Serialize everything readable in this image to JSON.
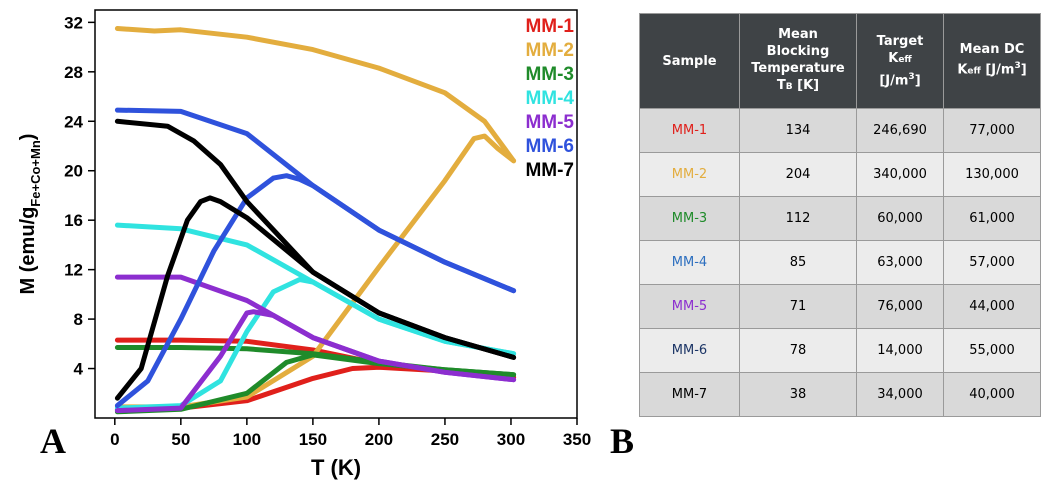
{
  "panel_a_label": "A",
  "panel_b_label": "B",
  "chart_data": {
    "type": "line",
    "xlabel": "T (K)",
    "ylabel": "M (emu/g",
    "ylabel_sub": "Fe+Co+Mn",
    "ylabel_end": ")",
    "xlim": [
      -15,
      350
    ],
    "ylim": [
      0,
      33
    ],
    "xticks": [
      0,
      50,
      100,
      150,
      200,
      250,
      300,
      350
    ],
    "yticks": [
      4,
      8,
      12,
      16,
      20,
      24,
      28,
      32
    ],
    "legend_position": "top-right",
    "series": [
      {
        "name": "MM-1",
        "color": "#e0201b",
        "fc": {
          "x": [
            2,
            50,
            100,
            150,
            200,
            250,
            302
          ],
          "y": [
            6.3,
            6.3,
            6.2,
            5.5,
            4.4,
            3.8,
            3.3
          ]
        },
        "zfc": {
          "x": [
            2,
            50,
            100,
            150,
            180,
            200,
            250,
            302
          ],
          "y": [
            0.7,
            0.8,
            1.4,
            3.2,
            4.0,
            4.1,
            3.8,
            3.3
          ]
        }
      },
      {
        "name": "MM-2",
        "color": "#e3ad3e",
        "fc": {
          "x": [
            2,
            30,
            50,
            100,
            150,
            200,
            250,
            280,
            302
          ],
          "y": [
            31.5,
            31.3,
            31.4,
            30.8,
            29.8,
            28.3,
            26.3,
            24.0,
            20.8
          ]
        },
        "zfc": {
          "x": [
            2,
            50,
            100,
            150,
            200,
            250,
            272,
            280,
            290,
            302
          ],
          "y": [
            0.9,
            0.9,
            1.7,
            5.0,
            12.2,
            19.2,
            22.6,
            22.8,
            21.8,
            20.8
          ]
        }
      },
      {
        "name": "MM-3",
        "color": "#1f8b2a",
        "fc": {
          "x": [
            2,
            50,
            100,
            150,
            200,
            250,
            302
          ],
          "y": [
            5.7,
            5.7,
            5.6,
            5.2,
            4.5,
            3.9,
            3.5
          ]
        },
        "zfc": {
          "x": [
            2,
            50,
            100,
            130,
            150,
            200,
            250,
            302
          ],
          "y": [
            0.5,
            0.7,
            2.0,
            4.5,
            5.1,
            4.4,
            3.9,
            3.5
          ]
        }
      },
      {
        "name": "MM-4",
        "color": "#30e3e0",
        "fc": {
          "x": [
            2,
            50,
            100,
            150,
            200,
            250,
            302
          ],
          "y": [
            15.6,
            15.3,
            14.0,
            11.0,
            8.0,
            6.2,
            5.2
          ]
        },
        "zfc": {
          "x": [
            2,
            50,
            80,
            100,
            120,
            140,
            150,
            200,
            250,
            302
          ],
          "y": [
            0.8,
            1.0,
            3.0,
            7.0,
            10.2,
            11.2,
            11.0,
            8.0,
            6.2,
            5.2
          ]
        }
      },
      {
        "name": "MM-5",
        "color": "#8c2ecf",
        "fc": {
          "x": [
            2,
            50,
            100,
            150,
            200,
            250,
            302
          ],
          "y": [
            11.4,
            11.4,
            9.5,
            6.5,
            4.6,
            3.7,
            3.1
          ]
        },
        "zfc": {
          "x": [
            2,
            50,
            80,
            100,
            105,
            120,
            150,
            200,
            250,
            302
          ],
          "y": [
            0.6,
            0.8,
            5.0,
            8.5,
            8.6,
            8.3,
            6.5,
            4.6,
            3.7,
            3.1
          ]
        }
      },
      {
        "name": "MM-6",
        "color": "#2f52dc",
        "fc": {
          "x": [
            2,
            50,
            100,
            150,
            200,
            250,
            302
          ],
          "y": [
            24.9,
            24.8,
            23.0,
            18.8,
            15.2,
            12.6,
            10.3
          ]
        },
        "zfc": {
          "x": [
            2,
            25,
            50,
            75,
            100,
            120,
            130,
            140,
            150,
            200,
            250,
            302
          ],
          "y": [
            1.0,
            3.0,
            8.0,
            13.5,
            17.8,
            19.4,
            19.6,
            19.3,
            18.8,
            15.2,
            12.6,
            10.3
          ]
        }
      },
      {
        "name": "MM-7",
        "color": "#000000",
        "fc": {
          "x": [
            2,
            40,
            60,
            80,
            100,
            150,
            200,
            250,
            302
          ],
          "y": [
            24.0,
            23.6,
            22.4,
            20.5,
            17.5,
            11.8,
            8.5,
            6.5,
            4.9
          ]
        },
        "zfc": {
          "x": [
            2,
            20,
            40,
            55,
            65,
            72,
            80,
            100,
            150,
            200,
            250,
            302
          ],
          "y": [
            1.6,
            4.0,
            11.5,
            16.0,
            17.5,
            17.8,
            17.5,
            16.2,
            11.8,
            8.5,
            6.5,
            4.9
          ]
        }
      }
    ]
  },
  "table": {
    "headers": [
      {
        "l1": "Sample"
      },
      {
        "l1": "Mean",
        "l2": "Blocking",
        "l3": "Temperature",
        "l4": "T",
        "l4sub": "B",
        "l4end": " [K]"
      },
      {
        "l1": "Target",
        "l2": "K",
        "l2sub": "eff",
        "l3": "[J/m",
        "l3sup": "3",
        "l3end": "]"
      },
      {
        "l1": "Mean DC",
        "l2": "K",
        "l2sub": "eff",
        "l2end": " [J/m",
        "l2sup": "3",
        "l2end2": "]"
      }
    ],
    "rows": [
      {
        "sample": "MM-1",
        "color": "#e0201b",
        "tb": "134",
        "target": "246,690",
        "meandc": "77,000"
      },
      {
        "sample": "MM-2",
        "color": "#e3ad3e",
        "tb": "204",
        "target": "340,000",
        "meandc": "130,000"
      },
      {
        "sample": "MM-3",
        "color": "#1f8b2a",
        "tb": "112",
        "target": "60,000",
        "meandc": "61,000"
      },
      {
        "sample": "MM-4",
        "color": "#2d6fbf",
        "tb": "85",
        "target": "63,000",
        "meandc": "57,000"
      },
      {
        "sample": "MM-5",
        "color": "#8c2ecf",
        "tb": "71",
        "target": "76,000",
        "meandc": "44,000"
      },
      {
        "sample": "MM-6",
        "color": "#1c3566",
        "tb": "78",
        "target": "14,000",
        "meandc": "55,000"
      },
      {
        "sample": "MM-7",
        "color": "#000000",
        "tb": "38",
        "target": "34,000",
        "meandc": "40,000"
      }
    ]
  }
}
